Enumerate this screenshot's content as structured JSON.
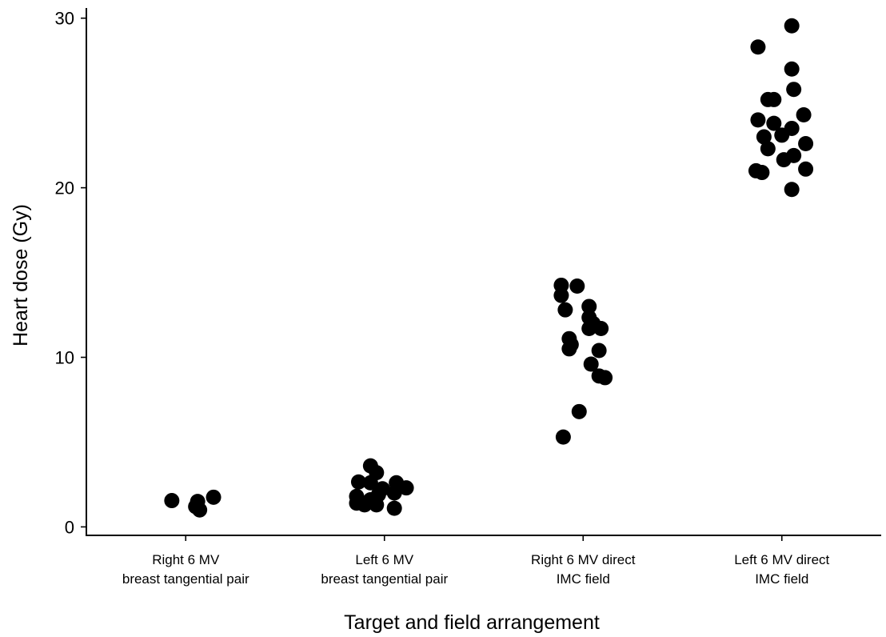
{
  "chart_data": {
    "type": "scatter",
    "title": "",
    "xlabel": "Target and field arrangement",
    "ylabel": "Heart dose (Gy)",
    "ylim": [
      -0.5,
      30.6
    ],
    "yticks": [
      0,
      10,
      20,
      30
    ],
    "grid": false,
    "legend": "none",
    "point_color": "#000000",
    "categories": [
      [
        "Right 6 MV",
        "breast tangential pair"
      ],
      [
        "Left 6 MV",
        "breast tangential pair"
      ],
      [
        "Right 6 MV direct",
        "IMC field"
      ],
      [
        "Left 6 MV direct",
        "IMC field"
      ]
    ],
    "series": [
      {
        "category_index": 0,
        "points": [
          {
            "x": 0.93,
            "y": 1.55
          },
          {
            "x": 1.06,
            "y": 1.5
          },
          {
            "x": 1.05,
            "y": 1.2
          },
          {
            "x": 1.07,
            "y": 1.0
          },
          {
            "x": 1.14,
            "y": 1.75
          }
        ]
      },
      {
        "category_index": 1,
        "points": [
          {
            "x": 1.93,
            "y": 3.6
          },
          {
            "x": 1.96,
            "y": 3.2
          },
          {
            "x": 1.87,
            "y": 2.65
          },
          {
            "x": 1.93,
            "y": 2.6
          },
          {
            "x": 2.06,
            "y": 2.6
          },
          {
            "x": 2.11,
            "y": 2.3
          },
          {
            "x": 1.99,
            "y": 2.25
          },
          {
            "x": 2.05,
            "y": 2.0
          },
          {
            "x": 1.97,
            "y": 1.9
          },
          {
            "x": 1.86,
            "y": 1.8
          },
          {
            "x": 1.93,
            "y": 1.6
          },
          {
            "x": 1.86,
            "y": 1.4
          },
          {
            "x": 1.9,
            "y": 1.3
          },
          {
            "x": 1.96,
            "y": 1.3
          },
          {
            "x": 2.05,
            "y": 1.1
          }
        ]
      },
      {
        "category_index": 2,
        "points": [
          {
            "x": 2.89,
            "y": 14.25
          },
          {
            "x": 2.97,
            "y": 14.2
          },
          {
            "x": 2.89,
            "y": 13.65
          },
          {
            "x": 3.03,
            "y": 13.0
          },
          {
            "x": 2.91,
            "y": 12.8
          },
          {
            "x": 3.03,
            "y": 12.35
          },
          {
            "x": 3.05,
            "y": 12.0
          },
          {
            "x": 3.03,
            "y": 11.7
          },
          {
            "x": 3.09,
            "y": 11.7
          },
          {
            "x": 2.93,
            "y": 11.1
          },
          {
            "x": 2.94,
            "y": 10.75
          },
          {
            "x": 2.93,
            "y": 10.5
          },
          {
            "x": 3.08,
            "y": 10.4
          },
          {
            "x": 3.04,
            "y": 9.6
          },
          {
            "x": 3.08,
            "y": 8.9
          },
          {
            "x": 3.11,
            "y": 8.8
          },
          {
            "x": 2.98,
            "y": 6.8
          },
          {
            "x": 2.9,
            "y": 5.3
          }
        ]
      },
      {
        "category_index": 3,
        "points": [
          {
            "x": 4.05,
            "y": 29.55
          },
          {
            "x": 3.88,
            "y": 28.3
          },
          {
            "x": 4.05,
            "y": 27.0
          },
          {
            "x": 4.06,
            "y": 25.8
          },
          {
            "x": 3.93,
            "y": 25.2
          },
          {
            "x": 3.96,
            "y": 25.2
          },
          {
            "x": 4.11,
            "y": 24.3
          },
          {
            "x": 3.88,
            "y": 24.0
          },
          {
            "x": 3.96,
            "y": 23.8
          },
          {
            "x": 4.05,
            "y": 23.5
          },
          {
            "x": 4.0,
            "y": 23.1
          },
          {
            "x": 3.91,
            "y": 23.0
          },
          {
            "x": 4.12,
            "y": 22.6
          },
          {
            "x": 3.93,
            "y": 22.3
          },
          {
            "x": 4.06,
            "y": 21.9
          },
          {
            "x": 4.01,
            "y": 21.65
          },
          {
            "x": 4.12,
            "y": 21.1
          },
          {
            "x": 3.87,
            "y": 21.0
          },
          {
            "x": 3.9,
            "y": 20.9
          },
          {
            "x": 4.05,
            "y": 19.9
          }
        ]
      }
    ]
  }
}
